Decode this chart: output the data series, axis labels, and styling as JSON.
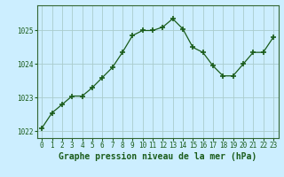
{
  "x": [
    0,
    1,
    2,
    3,
    4,
    5,
    6,
    7,
    8,
    9,
    10,
    11,
    12,
    13,
    14,
    15,
    16,
    17,
    18,
    19,
    20,
    21,
    22,
    23
  ],
  "y": [
    1022.1,
    1022.55,
    1022.8,
    1023.05,
    1023.05,
    1023.3,
    1023.6,
    1023.9,
    1024.35,
    1024.85,
    1025.0,
    1025.0,
    1025.1,
    1025.35,
    1025.05,
    1024.5,
    1024.35,
    1023.95,
    1023.65,
    1023.65,
    1024.0,
    1024.35,
    1024.35,
    1024.8
  ],
  "line_color": "#1a5c1a",
  "marker": "+",
  "marker_size": 4,
  "marker_lw": 1.2,
  "bg_color": "#cceeff",
  "grid_color": "#aacccc",
  "xlabel": "Graphe pression niveau de la mer (hPa)",
  "xlabel_fontsize": 7,
  "ylim": [
    1021.8,
    1025.75
  ],
  "yticks": [
    1022,
    1023,
    1024,
    1025
  ],
  "xticks": [
    0,
    1,
    2,
    3,
    4,
    5,
    6,
    7,
    8,
    9,
    10,
    11,
    12,
    13,
    14,
    15,
    16,
    17,
    18,
    19,
    20,
    21,
    22,
    23
  ],
  "tick_fontsize": 5.5,
  "axis_color": "#1a5c1a",
  "border_color": "#1a5c1a",
  "spine_color": "#336633"
}
